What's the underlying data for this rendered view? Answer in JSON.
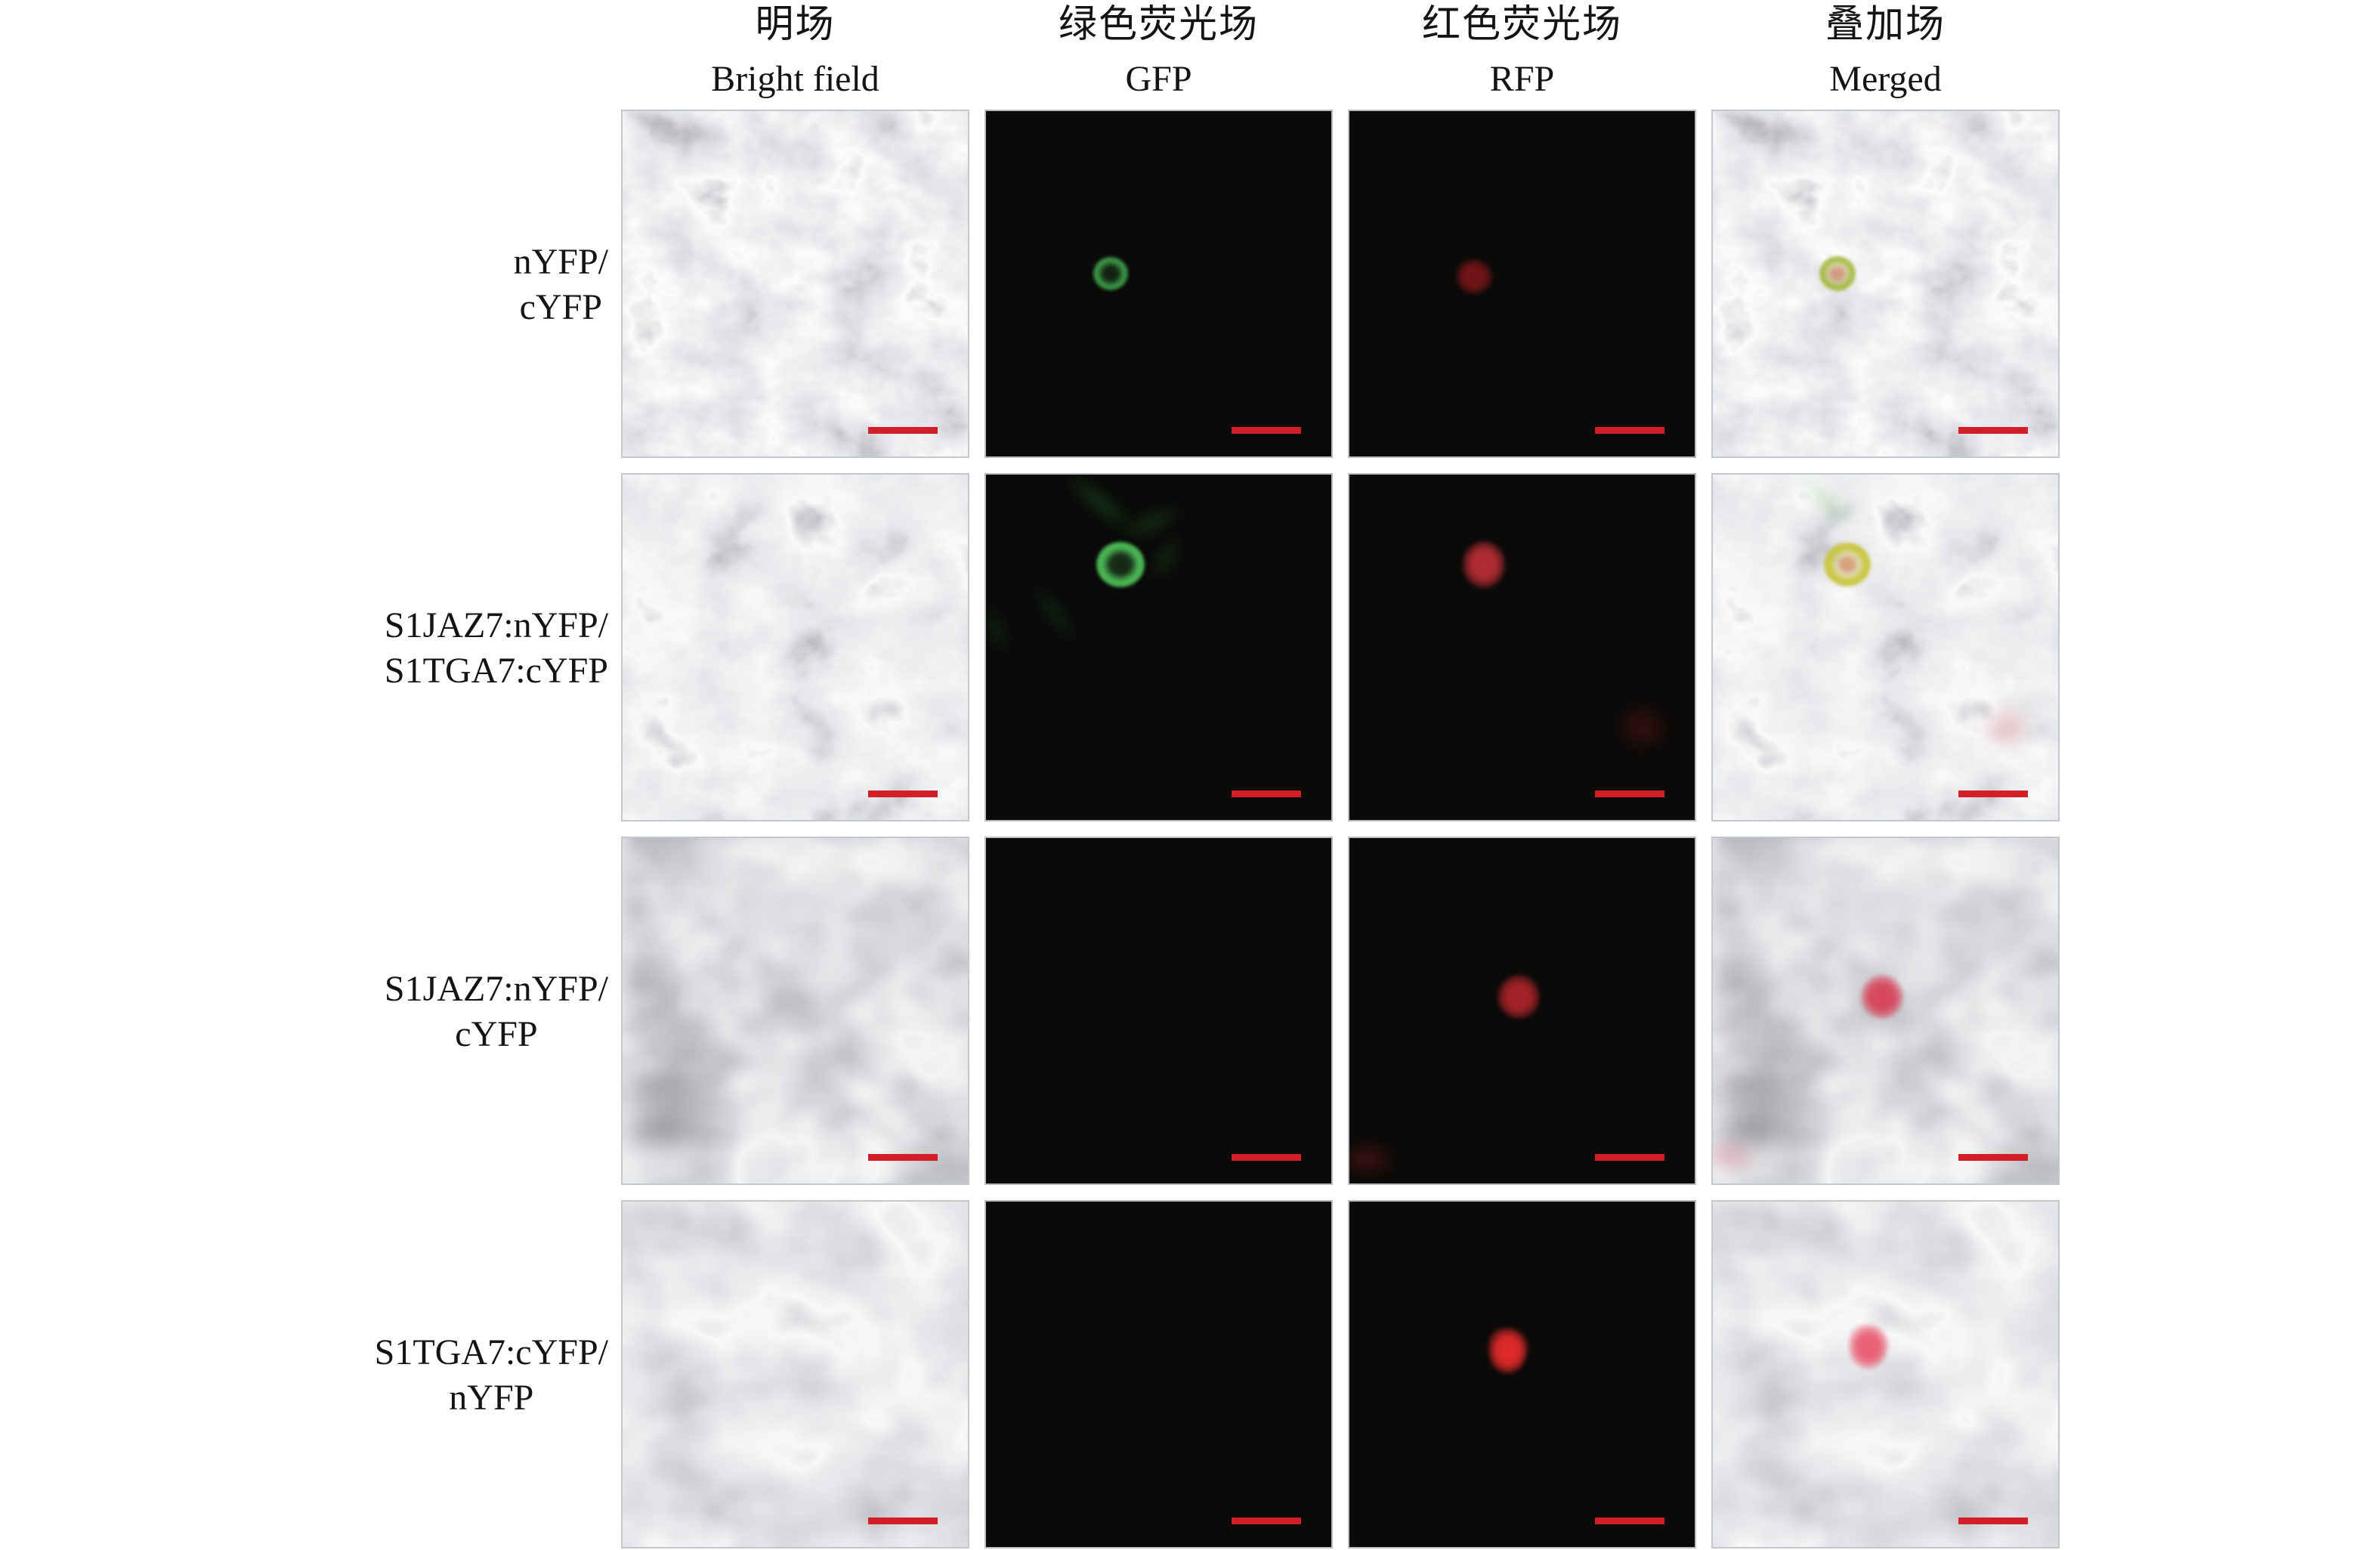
{
  "figure": {
    "columns": [
      {
        "zh": "明场",
        "en": "Bright field"
      },
      {
        "zh": "绿色荧光场",
        "en": "GFP"
      },
      {
        "zh": "红色荧光场",
        "en": "RFP"
      },
      {
        "zh": "叠加场",
        "en": "Merged"
      }
    ],
    "rows": [
      {
        "label_lines": [
          "nYFP/",
          "cYFP"
        ],
        "panels": [
          {
            "kind": "bf",
            "spots": []
          },
          {
            "kind": "dark",
            "spots": [
              {
                "type": "ring",
                "x": 36,
                "y": 47,
                "w": 46,
                "h": 44,
                "color": "#3fa24c",
                "opacity": 0.95
              }
            ]
          },
          {
            "kind": "dark",
            "spots": [
              {
                "type": "blob",
                "x": 36,
                "y": 48,
                "w": 48,
                "h": 46,
                "color": "#8c181c",
                "opacity": 0.85
              }
            ]
          },
          {
            "kind": "merged",
            "spots": [
              {
                "type": "ring",
                "x": 36,
                "y": 47,
                "w": 48,
                "h": 46,
                "color": "#a4b73a",
                "opacity": 0.95
              },
              {
                "type": "blob",
                "x": 36,
                "y": 47,
                "w": 26,
                "h": 24,
                "color": "#c25a35",
                "opacity": 0.55
              }
            ]
          }
        ]
      },
      {
        "label_lines": [
          "S1JAZ7:nYFP/",
          "S1TGA7:cYFP"
        ],
        "panels": [
          {
            "kind": "bf",
            "spots": []
          },
          {
            "kind": "dark",
            "spots": [
              {
                "type": "ring",
                "x": 39,
                "y": 26,
                "w": 64,
                "h": 60,
                "color": "#4fbf59",
                "opacity": 1
              },
              {
                "type": "smudge",
                "x": 33,
                "y": 8,
                "w": 110,
                "h": 20,
                "color": "#35a441",
                "opacity": 0.5,
                "rot": 40
              },
              {
                "type": "smudge",
                "x": 48,
                "y": 14,
                "w": 80,
                "h": 20,
                "color": "#35a441",
                "opacity": 0.45,
                "rot": -25
              },
              {
                "type": "smudge",
                "x": 52,
                "y": 24,
                "w": 60,
                "h": 18,
                "color": "#35a441",
                "opacity": 0.4,
                "rot": -60
              },
              {
                "type": "smudge",
                "x": 20,
                "y": 40,
                "w": 90,
                "h": 18,
                "color": "#2f8f3c",
                "opacity": 0.35,
                "rot": 55
              },
              {
                "type": "smudge",
                "x": 3,
                "y": 45,
                "w": 60,
                "h": 16,
                "color": "#2f8f3c",
                "opacity": 0.4,
                "rot": 75
              }
            ]
          },
          {
            "kind": "dark",
            "spots": [
              {
                "type": "blob",
                "x": 39,
                "y": 26,
                "w": 56,
                "h": 62,
                "color": "#c5303a",
                "opacity": 0.95
              },
              {
                "type": "smudge",
                "x": 85,
                "y": 73,
                "w": 64,
                "h": 56,
                "color": "#7e1a1e",
                "opacity": 0.55
              }
            ]
          },
          {
            "kind": "merged",
            "spots": [
              {
                "type": "ring",
                "x": 39,
                "y": 26,
                "w": 62,
                "h": 58,
                "color": "#c9c53e",
                "opacity": 1
              },
              {
                "type": "blob",
                "x": 39,
                "y": 26,
                "w": 28,
                "h": 26,
                "color": "#d0703d",
                "opacity": 0.6
              },
              {
                "type": "smudge",
                "x": 33,
                "y": 8,
                "w": 100,
                "h": 18,
                "color": "#58b54c",
                "opacity": 0.4,
                "rot": 40
              },
              {
                "type": "smudge",
                "x": 85,
                "y": 73,
                "w": 64,
                "h": 56,
                "color": "#cf4d55",
                "opacity": 0.4
              }
            ]
          }
        ]
      },
      {
        "label_lines": [
          "S1JAZ7:nYFP/",
          "cYFP"
        ],
        "panels": [
          {
            "kind": "bf",
            "spots": []
          },
          {
            "kind": "dark",
            "spots": []
          },
          {
            "kind": "dark",
            "spots": [
              {
                "type": "blob",
                "x": 49,
                "y": 46,
                "w": 56,
                "h": 58,
                "color": "#b7262e",
                "opacity": 0.95
              },
              {
                "type": "smudge",
                "x": 5,
                "y": 93,
                "w": 70,
                "h": 40,
                "color": "#8f1d22",
                "opacity": 0.6
              }
            ]
          },
          {
            "kind": "merged",
            "spots": [
              {
                "type": "blob",
                "x": 49,
                "y": 46,
                "w": 56,
                "h": 58,
                "color": "#d93850",
                "opacity": 0.95
              },
              {
                "type": "smudge",
                "x": 5,
                "y": 92,
                "w": 70,
                "h": 44,
                "color": "#d46a7d",
                "opacity": 0.55
              }
            ]
          }
        ]
      },
      {
        "label_lines": [
          "S1TGA7:cYFP/",
          "nYFP"
        ],
        "panels": [
          {
            "kind": "bf",
            "spots": []
          },
          {
            "kind": "dark",
            "spots": []
          },
          {
            "kind": "dark",
            "spots": [
              {
                "type": "blob",
                "x": 46,
                "y": 43,
                "w": 52,
                "h": 60,
                "color": "#ec2c2c",
                "opacity": 1,
                "br": "42% 58% 52% 48% / 38% 46% 62% 54%"
              }
            ]
          },
          {
            "kind": "merged",
            "spots": [
              {
                "type": "blob",
                "x": 45,
                "y": 42,
                "w": 52,
                "h": 58,
                "color": "#e94f67",
                "opacity": 0.95,
                "br": "42% 58% 52% 48% / 38% 46% 62% 54%"
              }
            ]
          }
        ]
      }
    ],
    "scale_bar_color": "#d21f27"
  }
}
